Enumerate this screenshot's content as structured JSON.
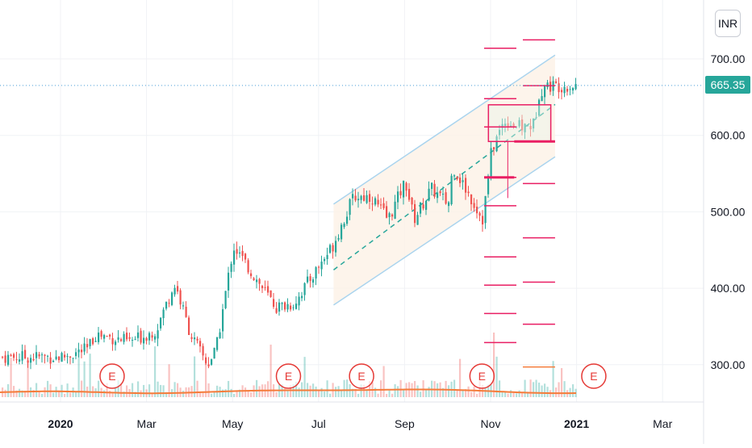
{
  "currency": "INR",
  "last_price": "665.35",
  "colors": {
    "up": "#26a69a",
    "down": "#ef5350",
    "level": "#e91e63",
    "channel_border": "#aad4ee",
    "channel_fill": "#fdf1e6",
    "midline": "#26a69a",
    "volume_ma": "#f57c3a",
    "earnings": "#e53935",
    "price_line": "#4a9fd8",
    "future_level": "#f57c3a"
  },
  "chart_data": {
    "type": "candlestick",
    "symbol_currency": "INR",
    "x_tick_labels": [
      "2020",
      "Mar",
      "May",
      "Jul",
      "Sep",
      "Nov",
      "2021",
      "Mar"
    ],
    "y_tick_labels": [
      "300.00",
      "400.00",
      "500.00",
      "600.00",
      "700.00"
    ],
    "ylim": [
      268,
      728
    ],
    "last_price": 665.35,
    "price_path": {
      "x_months_since_dec2019": [
        1.0,
        1.6,
        1.8,
        2.6,
        3.2,
        3.55,
        3.65,
        4.0,
        4.4,
        4.6,
        5.0,
        5.8,
        6.0,
        6.4,
        7.0,
        7.3,
        7.8,
        8.2,
        8.6,
        9.0,
        9.2,
        9.6,
        10.0,
        10.1,
        10.4,
        10.8,
        11.0,
        11.3,
        11.7,
        12.0,
        12.1,
        12.25
      ],
      "close": [
        310,
        320,
        340,
        330,
        345,
        395,
        405,
        340,
        300,
        320,
        455,
        390,
        375,
        380,
        430,
        455,
        520,
        520,
        490,
        540,
        490,
        530,
        510,
        560,
        530,
        490,
        580,
        620,
        610,
        615,
        655,
        665
      ]
    },
    "volume_max_month": 8.0,
    "channel": {
      "x_months": [
        7.35,
        12.5
      ],
      "upper": [
        510,
        705
      ],
      "lower": [
        378,
        572
      ]
    },
    "consolidation_box": {
      "x_months": [
        10.95,
        12.4
      ],
      "top": 640,
      "bottom": 592
    },
    "levels": [
      {
        "x_months": [
          10.85,
          11.55
        ],
        "value": 545
      },
      {
        "x_months": [
          11.55,
          12.5
        ],
        "value": 592
      }
    ],
    "level_ticks": {
      "left_x_months": [
        10.85,
        11.6
      ],
      "left": [
        714,
        648,
        611,
        545,
        508,
        441,
        404,
        367,
        329
      ],
      "right_x_months": [
        11.75,
        12.5
      ],
      "right": [
        725,
        665,
        537,
        466,
        408,
        353,
        297
      ]
    },
    "earnings_markers": {
      "label": "E",
      "x_months": [
        2.2,
        6.3,
        8.0,
        10.8,
        13.4
      ]
    }
  }
}
